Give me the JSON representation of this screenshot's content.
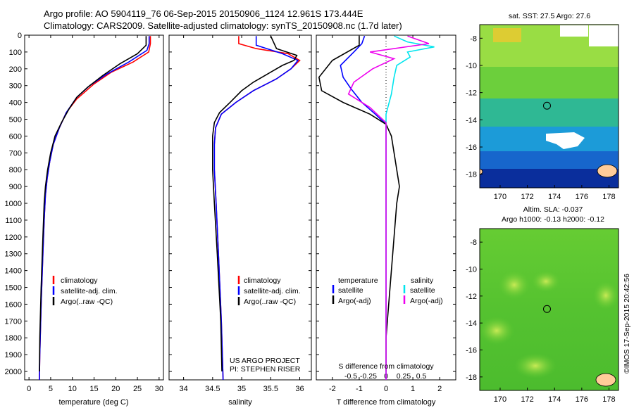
{
  "header": {
    "line1": "Argo profile: AO 5904119_76 06-Sep-2015 20150906_1124 12.961S 173.444E",
    "line2": "Climatology: CARS2009. Satellite-adjusted climatology: synTS_20150908.nc (1.7d later)"
  },
  "colors": {
    "climatology": "#ff0000",
    "satellite": "#0000ff",
    "argo": "#000000",
    "salinity_satellite": "#00e5ee",
    "salinity_argo": "#ee00ee"
  },
  "chart_data": [
    {
      "type": "line",
      "panel": "temperature",
      "xlabel": "temperature (deg C)",
      "xlim": [
        -1,
        31
      ],
      "xticks": [
        0,
        5,
        10,
        15,
        20,
        25,
        30
      ],
      "ylim": [
        0,
        2050
      ],
      "yticks": [
        0,
        100,
        200,
        300,
        400,
        500,
        600,
        700,
        800,
        900,
        1000,
        1100,
        1200,
        1300,
        1400,
        1500,
        1600,
        1700,
        1800,
        1900,
        2000
      ],
      "legend": [
        "climatology",
        "satellite-adj. clim.",
        "Argo(..raw -QC)"
      ],
      "series": [
        {
          "name": "climatology",
          "color": "#ff0000",
          "points": [
            [
              28,
              5
            ],
            [
              28,
              50
            ],
            [
              27.6,
              100
            ],
            [
              24,
              160
            ],
            [
              19,
              220
            ],
            [
              15,
              290
            ],
            [
              11,
              380
            ],
            [
              8.6,
              460
            ],
            [
              7,
              550
            ],
            [
              5.6,
              650
            ],
            [
              4.8,
              750
            ],
            [
              4.2,
              850
            ],
            [
              3.8,
              950
            ],
            [
              3.5,
              1100
            ],
            [
              3.2,
              1300
            ],
            [
              2.8,
              1600
            ],
            [
              2.5,
              1900
            ],
            [
              2.4,
              2050
            ]
          ]
        },
        {
          "name": "satellite-adj. clim.",
          "color": "#0000ff",
          "points": [
            [
              27.7,
              5
            ],
            [
              27.7,
              50
            ],
            [
              27.2,
              90
            ],
            [
              23,
              160
            ],
            [
              18,
              230
            ],
            [
              14,
              300
            ],
            [
              11,
              370
            ],
            [
              8.6,
              460
            ],
            [
              7,
              550
            ],
            [
              5.6,
              650
            ],
            [
              4.8,
              750
            ],
            [
              4.2,
              850
            ],
            [
              3.8,
              950
            ],
            [
              3.5,
              1100
            ],
            [
              3.2,
              1300
            ],
            [
              2.8,
              1600
            ],
            [
              2.5,
              1900
            ],
            [
              2.4,
              2050
            ]
          ]
        },
        {
          "name": "Argo(..raw -QC)",
          "color": "#000000",
          "points": [
            [
              27,
              5
            ],
            [
              27,
              60
            ],
            [
              25,
              110
            ],
            [
              21,
              170
            ],
            [
              17,
              240
            ],
            [
              13.5,
              310
            ],
            [
              11,
              370
            ],
            [
              9.2,
              440
            ],
            [
              7.5,
              520
            ],
            [
              6,
              600
            ],
            [
              5,
              700
            ],
            [
              4.3,
              800
            ],
            [
              3.8,
              900
            ],
            [
              3.5,
              1000
            ],
            [
              3.2,
              1200
            ],
            [
              2.8,
              1500
            ],
            [
              2.5,
              1800
            ],
            [
              2.4,
              2000
            ]
          ]
        }
      ]
    },
    {
      "type": "line",
      "panel": "salinity",
      "xlabel": "salinity",
      "xlim": [
        33.75,
        36.2
      ],
      "xticks": [
        34,
        34.5,
        35,
        35.5,
        36
      ],
      "xticklabels": [
        "34",
        "34.5",
        "35",
        "35.5",
        "36"
      ],
      "ylim": [
        0,
        2050
      ],
      "legend": [
        "climatology",
        "satellite-adj. clim.",
        "Argo(..raw -QC)"
      ],
      "annotation": [
        "US ARGO PROJECT",
        "PI: STEPHEN RISER"
      ],
      "series": [
        {
          "name": "climatology",
          "color": "#ff0000",
          "points": [
            [
              34.95,
              5
            ],
            [
              34.95,
              50
            ],
            [
              35.25,
              80
            ],
            [
              35.8,
              110
            ],
            [
              36.0,
              150
            ],
            [
              35.85,
              200
            ],
            [
              35.6,
              260
            ],
            [
              35.2,
              330
            ],
            [
              34.9,
              400
            ],
            [
              34.65,
              470
            ],
            [
              34.55,
              550
            ],
            [
              34.53,
              650
            ],
            [
              34.53,
              800
            ],
            [
              34.56,
              1000
            ],
            [
              34.6,
              1300
            ],
            [
              34.65,
              1700
            ],
            [
              34.68,
              2050
            ]
          ]
        },
        {
          "name": "satellite-adj. clim.",
          "color": "#0000ff",
          "points": [
            [
              35.25,
              5
            ],
            [
              35.25,
              60
            ],
            [
              35.7,
              110
            ],
            [
              35.97,
              150
            ],
            [
              35.85,
              200
            ],
            [
              35.6,
              260
            ],
            [
              35.2,
              330
            ],
            [
              34.9,
              400
            ],
            [
              34.65,
              470
            ],
            [
              34.55,
              550
            ],
            [
              34.53,
              650
            ],
            [
              34.53,
              800
            ],
            [
              34.56,
              1000
            ],
            [
              34.6,
              1300
            ],
            [
              34.65,
              1700
            ],
            [
              34.68,
              2050
            ]
          ]
        },
        {
          "name": "Argo(..raw -QC)",
          "color": "#000000",
          "points": [
            [
              35.5,
              5
            ],
            [
              35.6,
              80
            ],
            [
              35.95,
              120
            ],
            [
              35.9,
              150
            ],
            [
              35.7,
              180
            ],
            [
              35.5,
              220
            ],
            [
              35.2,
              280
            ],
            [
              35.0,
              330
            ],
            [
              34.8,
              400
            ],
            [
              34.62,
              460
            ],
            [
              34.53,
              520
            ],
            [
              34.5,
              600
            ],
            [
              34.5,
              800
            ],
            [
              34.53,
              1000
            ],
            [
              34.58,
              1300
            ],
            [
              34.64,
              1700
            ],
            [
              34.66,
              2000
            ]
          ]
        }
      ]
    },
    {
      "type": "line",
      "panel": "difference",
      "xlabel": "T difference from climatology",
      "xlabel_top": "S difference from climatology",
      "xlim": [
        -2.6,
        2.6
      ],
      "xticks": [
        -2,
        -1,
        0,
        1,
        2
      ],
      "sticks": [
        -0.5,
        -0.25,
        0,
        0.25,
        0.5
      ],
      "ylim": [
        0,
        2050
      ],
      "legend_groups": [
        {
          "title": "temperature",
          "items": [
            "satellite",
            "Argo(-adj)"
          ]
        },
        {
          "title": "salinity",
          "items": [
            "satellite",
            "Argo(-adj)"
          ]
        }
      ],
      "series": [
        {
          "name": "temperature satellite",
          "color": "#0000ff",
          "points": [
            [
              -0.8,
              5
            ],
            [
              -0.9,
              50
            ],
            [
              -1.2,
              100
            ],
            [
              -1.7,
              180
            ],
            [
              -1.6,
              250
            ],
            [
              -1.3,
              320
            ],
            [
              -0.9,
              400
            ],
            [
              -0.4,
              470
            ],
            [
              0,
              530
            ],
            [
              0,
              2050
            ]
          ]
        },
        {
          "name": "temperature Argo(-adj)",
          "color": "#000000",
          "points": [
            [
              -1,
              5
            ],
            [
              -1,
              60
            ],
            [
              -2,
              150
            ],
            [
              -2.5,
              250
            ],
            [
              -2.4,
              330
            ],
            [
              -1.6,
              400
            ],
            [
              -0.6,
              470
            ],
            [
              0,
              530
            ],
            [
              0.2,
              600
            ],
            [
              0.3,
              700
            ],
            [
              0.4,
              800
            ],
            [
              0.5,
              900
            ],
            [
              0.4,
              1000
            ],
            [
              0.3,
              1200
            ],
            [
              0.15,
              1500
            ],
            [
              0,
              1800
            ],
            [
              0,
              2000
            ]
          ]
        },
        {
          "name": "salinity satellite",
          "color": "#00e5ee",
          "points": [
            [
              0.3,
              5
            ],
            [
              0.8,
              40
            ],
            [
              1.8,
              70
            ],
            [
              0.8,
              100
            ],
            [
              0.9,
              130
            ],
            [
              0.4,
              180
            ],
            [
              0.3,
              250
            ],
            [
              0.2,
              350
            ],
            [
              0,
              470
            ],
            [
              0,
              2050
            ]
          ]
        },
        {
          "name": "salinity Argo(-adj)",
          "color": "#ee00ee",
          "points": [
            [
              0.8,
              5
            ],
            [
              1.6,
              50
            ],
            [
              -0.6,
              100
            ],
            [
              0.3,
              140
            ],
            [
              -0.5,
              200
            ],
            [
              -1.2,
              280
            ],
            [
              -1.4,
              350
            ],
            [
              -0.6,
              430
            ],
            [
              0,
              520
            ],
            [
              0,
              2050
            ]
          ]
        }
      ]
    }
  ],
  "map_sst": {
    "title": "sat. SST: 27.5 Argo: 27.6",
    "xticks": [
      170,
      172,
      174,
      176,
      178
    ],
    "yticks": [
      -8,
      -10,
      -12,
      -14,
      -16,
      -18
    ],
    "lon_range": [
      168.5,
      178.7
    ],
    "lat_range": [
      -19.0,
      -7.0
    ],
    "marker": [
      173.444,
      -12.961
    ]
  },
  "map_sla": {
    "title_line1": "Altim. SLA: -0.037",
    "title_line2": "Argo h1000: -0.13 h2000: -0.12",
    "xticks": [
      170,
      172,
      174,
      176,
      178
    ],
    "yticks": [
      -8,
      -10,
      -12,
      -14,
      -16,
      -18
    ],
    "lon_range": [
      168.5,
      178.7
    ],
    "lat_range": [
      -19.0,
      -7.0
    ],
    "marker": [
      173.444,
      -12.961
    ]
  },
  "footer": {
    "credit": "©IMOS 17-Sep-2015 20:42:56"
  }
}
